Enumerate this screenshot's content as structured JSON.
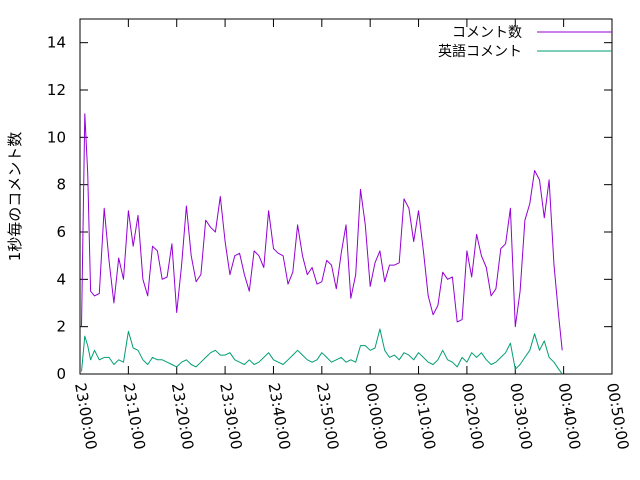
{
  "chart_data": {
    "type": "line",
    "ylabel": "1秒毎のコメント数",
    "ylim": [
      0,
      15
    ],
    "yticks": [
      0,
      2,
      4,
      6,
      8,
      10,
      12,
      14
    ],
    "xlim_minutes": [
      0,
      110
    ],
    "xticks": [
      {
        "t": 0,
        "label": "23:00:00"
      },
      {
        "t": 10,
        "label": "23:10:00"
      },
      {
        "t": 20,
        "label": "23:20:00"
      },
      {
        "t": 30,
        "label": "23:30:00"
      },
      {
        "t": 40,
        "label": "23:40:00"
      },
      {
        "t": 50,
        "label": "23:50:00"
      },
      {
        "t": 60,
        "label": "00:00:00"
      },
      {
        "t": 70,
        "label": "00:10:00"
      },
      {
        "t": 80,
        "label": "00:20:00"
      },
      {
        "t": 90,
        "label": "00:30:00"
      },
      {
        "t": 100,
        "label": "00:40:00"
      },
      {
        "t": 110,
        "label": "00:50:00"
      }
    ],
    "grid": false,
    "legend_position": "top-right",
    "series": [
      {
        "name": "コメント数",
        "color": "#9400d3",
        "points": [
          [
            0.3,
            2.0
          ],
          [
            1.0,
            11.0
          ],
          [
            1.6,
            8.5
          ],
          [
            2.2,
            3.5
          ],
          [
            3.0,
            3.3
          ],
          [
            4.0,
            3.4
          ],
          [
            5.0,
            7.0
          ],
          [
            6.0,
            4.8
          ],
          [
            7.0,
            3.0
          ],
          [
            8.0,
            4.9
          ],
          [
            9.0,
            4.0
          ],
          [
            10.0,
            6.9
          ],
          [
            11.0,
            5.4
          ],
          [
            12.0,
            6.7
          ],
          [
            13.0,
            4.0
          ],
          [
            14.0,
            3.3
          ],
          [
            15.0,
            5.4
          ],
          [
            16.0,
            5.2
          ],
          [
            17.0,
            4.0
          ],
          [
            18.0,
            4.1
          ],
          [
            19.0,
            5.5
          ],
          [
            20.0,
            2.6
          ],
          [
            21.0,
            4.6
          ],
          [
            22.0,
            7.1
          ],
          [
            23.0,
            5.0
          ],
          [
            24.0,
            3.9
          ],
          [
            25.0,
            4.2
          ],
          [
            26.0,
            6.5
          ],
          [
            27.0,
            6.2
          ],
          [
            28.0,
            6.0
          ],
          [
            29.0,
            7.5
          ],
          [
            30.0,
            5.6
          ],
          [
            31.0,
            4.2
          ],
          [
            32.0,
            5.0
          ],
          [
            33.0,
            5.1
          ],
          [
            34.0,
            4.2
          ],
          [
            35.0,
            3.5
          ],
          [
            36.0,
            5.2
          ],
          [
            37.0,
            5.0
          ],
          [
            38.0,
            4.5
          ],
          [
            39.0,
            6.9
          ],
          [
            40.0,
            5.3
          ],
          [
            41.0,
            5.1
          ],
          [
            42.0,
            5.0
          ],
          [
            43.0,
            3.8
          ],
          [
            44.0,
            4.3
          ],
          [
            45.0,
            6.3
          ],
          [
            46.0,
            5.0
          ],
          [
            47.0,
            4.2
          ],
          [
            48.0,
            4.5
          ],
          [
            49.0,
            3.8
          ],
          [
            50.0,
            3.9
          ],
          [
            51.0,
            4.8
          ],
          [
            52.0,
            4.6
          ],
          [
            53.0,
            3.6
          ],
          [
            54.0,
            5.1
          ],
          [
            55.0,
            6.3
          ],
          [
            56.0,
            3.2
          ],
          [
            57.0,
            4.2
          ],
          [
            58.0,
            7.8
          ],
          [
            59.0,
            6.3
          ],
          [
            60.0,
            3.7
          ],
          [
            61.0,
            4.7
          ],
          [
            62.0,
            5.2
          ],
          [
            63.0,
            3.9
          ],
          [
            64.0,
            4.6
          ],
          [
            65.0,
            4.6
          ],
          [
            66.0,
            4.7
          ],
          [
            67.0,
            7.4
          ],
          [
            68.0,
            7.0
          ],
          [
            69.0,
            5.6
          ],
          [
            70.0,
            6.9
          ],
          [
            71.0,
            5.2
          ],
          [
            72.0,
            3.3
          ],
          [
            73.0,
            2.5
          ],
          [
            74.0,
            2.9
          ],
          [
            75.0,
            4.3
          ],
          [
            76.0,
            4.0
          ],
          [
            77.0,
            4.1
          ],
          [
            78.0,
            2.2
          ],
          [
            79.0,
            2.3
          ],
          [
            80.0,
            5.2
          ],
          [
            81.0,
            4.1
          ],
          [
            82.0,
            5.9
          ],
          [
            83.0,
            5.0
          ],
          [
            84.0,
            4.5
          ],
          [
            85.0,
            3.3
          ],
          [
            86.0,
            3.6
          ],
          [
            87.0,
            5.3
          ],
          [
            88.0,
            5.5
          ],
          [
            89.0,
            7.0
          ],
          [
            90.0,
            2.0
          ],
          [
            91.0,
            3.5
          ],
          [
            92.0,
            6.5
          ],
          [
            93.0,
            7.2
          ],
          [
            94.0,
            8.6
          ],
          [
            95.0,
            8.2
          ],
          [
            96.0,
            6.6
          ],
          [
            97.0,
            8.2
          ],
          [
            98.0,
            4.6
          ],
          [
            99.0,
            2.4
          ],
          [
            99.7,
            1.0
          ]
        ]
      },
      {
        "name": "英語コメント",
        "color": "#009e73",
        "points": [
          [
            0.3,
            0.1
          ],
          [
            1.0,
            1.6
          ],
          [
            1.6,
            1.2
          ],
          [
            2.2,
            0.6
          ],
          [
            3.0,
            1.0
          ],
          [
            4.0,
            0.6
          ],
          [
            5.0,
            0.7
          ],
          [
            6.0,
            0.7
          ],
          [
            7.0,
            0.4
          ],
          [
            8.0,
            0.6
          ],
          [
            9.0,
            0.5
          ],
          [
            10.0,
            1.8
          ],
          [
            11.0,
            1.1
          ],
          [
            12.0,
            1.0
          ],
          [
            13.0,
            0.6
          ],
          [
            14.0,
            0.4
          ],
          [
            15.0,
            0.7
          ],
          [
            16.0,
            0.6
          ],
          [
            17.0,
            0.6
          ],
          [
            18.0,
            0.5
          ],
          [
            19.0,
            0.4
          ],
          [
            20.0,
            0.3
          ],
          [
            21.0,
            0.5
          ],
          [
            22.0,
            0.6
          ],
          [
            23.0,
            0.4
          ],
          [
            24.0,
            0.3
          ],
          [
            25.0,
            0.5
          ],
          [
            26.0,
            0.7
          ],
          [
            27.0,
            0.9
          ],
          [
            28.0,
            1.0
          ],
          [
            29.0,
            0.8
          ],
          [
            30.0,
            0.8
          ],
          [
            31.0,
            0.9
          ],
          [
            32.0,
            0.6
          ],
          [
            33.0,
            0.5
          ],
          [
            34.0,
            0.4
          ],
          [
            35.0,
            0.6
          ],
          [
            36.0,
            0.4
          ],
          [
            37.0,
            0.5
          ],
          [
            38.0,
            0.7
          ],
          [
            39.0,
            0.9
          ],
          [
            40.0,
            0.6
          ],
          [
            41.0,
            0.5
          ],
          [
            42.0,
            0.4
          ],
          [
            43.0,
            0.6
          ],
          [
            44.0,
            0.8
          ],
          [
            45.0,
            1.0
          ],
          [
            46.0,
            0.8
          ],
          [
            47.0,
            0.6
          ],
          [
            48.0,
            0.5
          ],
          [
            49.0,
            0.6
          ],
          [
            50.0,
            0.9
          ],
          [
            51.0,
            0.7
          ],
          [
            52.0,
            0.5
          ],
          [
            53.0,
            0.6
          ],
          [
            54.0,
            0.7
          ],
          [
            55.0,
            0.5
          ],
          [
            56.0,
            0.6
          ],
          [
            57.0,
            0.5
          ],
          [
            58.0,
            1.2
          ],
          [
            59.0,
            1.2
          ],
          [
            60.0,
            1.0
          ],
          [
            61.0,
            1.1
          ],
          [
            62.0,
            1.9
          ],
          [
            63.0,
            1.0
          ],
          [
            64.0,
            0.7
          ],
          [
            65.0,
            0.8
          ],
          [
            66.0,
            0.6
          ],
          [
            67.0,
            0.9
          ],
          [
            68.0,
            0.8
          ],
          [
            69.0,
            0.6
          ],
          [
            70.0,
            0.9
          ],
          [
            71.0,
            0.7
          ],
          [
            72.0,
            0.5
          ],
          [
            73.0,
            0.4
          ],
          [
            74.0,
            0.6
          ],
          [
            75.0,
            1.0
          ],
          [
            76.0,
            0.6
          ],
          [
            77.0,
            0.5
          ],
          [
            78.0,
            0.3
          ],
          [
            79.0,
            0.7
          ],
          [
            80.0,
            0.5
          ],
          [
            81.0,
            0.9
          ],
          [
            82.0,
            0.7
          ],
          [
            83.0,
            0.9
          ],
          [
            84.0,
            0.6
          ],
          [
            85.0,
            0.4
          ],
          [
            86.0,
            0.5
          ],
          [
            87.0,
            0.7
          ],
          [
            88.0,
            0.9
          ],
          [
            89.0,
            1.3
          ],
          [
            90.0,
            0.2
          ],
          [
            91.0,
            0.4
          ],
          [
            92.0,
            0.7
          ],
          [
            93.0,
            1.0
          ],
          [
            94.0,
            1.7
          ],
          [
            95.0,
            1.0
          ],
          [
            96.0,
            1.4
          ],
          [
            97.0,
            0.7
          ],
          [
            98.0,
            0.5
          ],
          [
            99.0,
            0.2
          ],
          [
            99.7,
            0.0
          ]
        ]
      }
    ]
  }
}
